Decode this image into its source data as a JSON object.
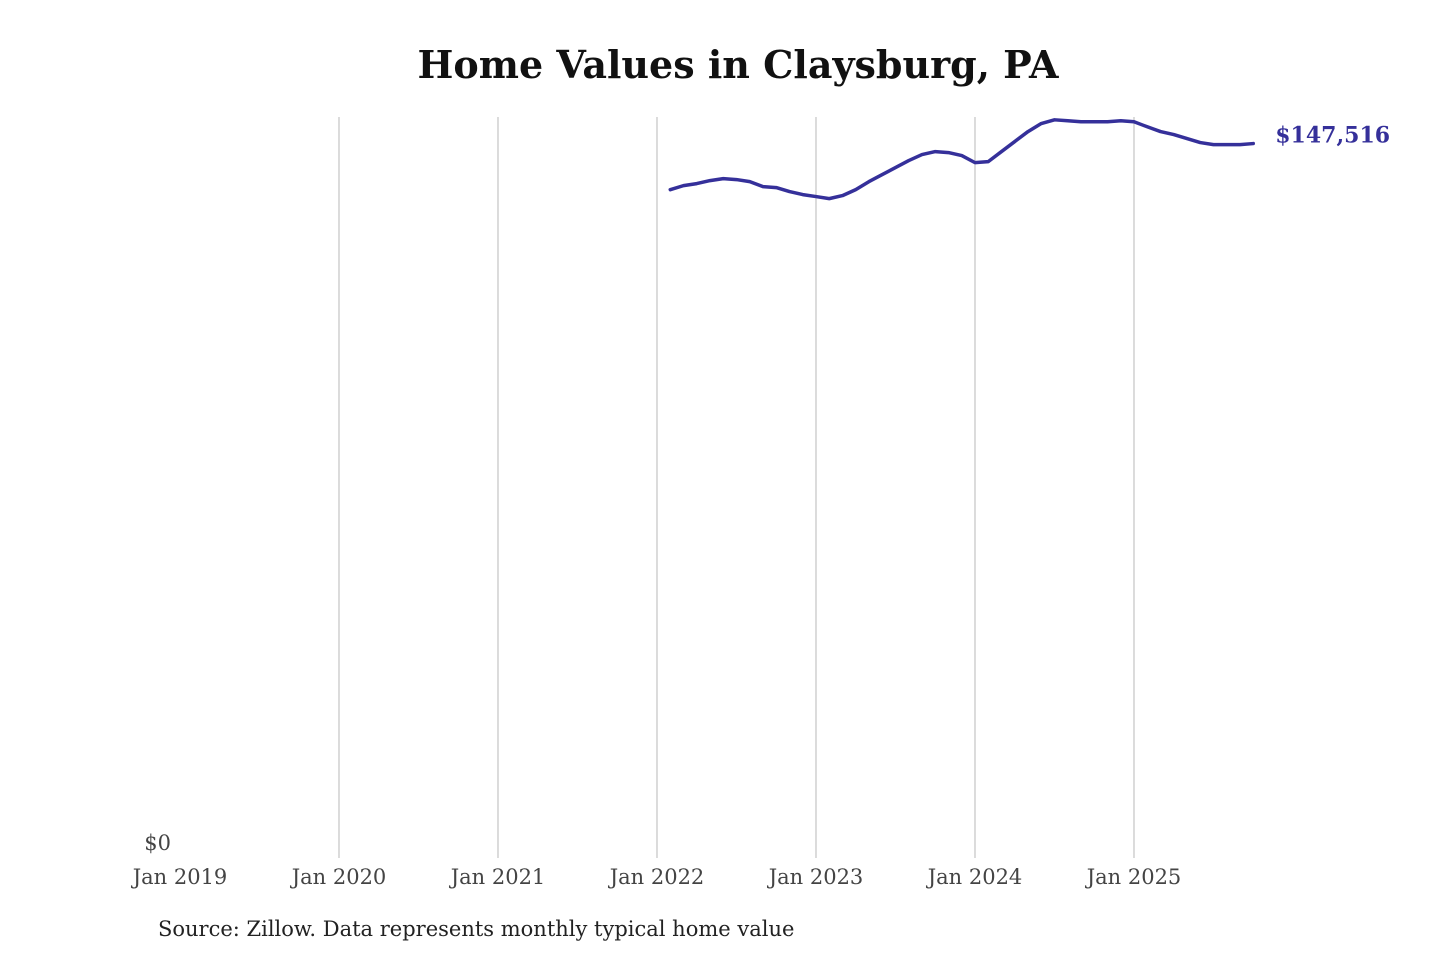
{
  "chart_data": {
    "type": "line",
    "title": "Home Values in Claysburg, PA",
    "source": "Source: Zillow. Data represents monthly typical home value",
    "xlabel": "",
    "ylabel": "",
    "x_ticks": [
      "Jan 2019",
      "Jan 2020",
      "Jan 2021",
      "Jan 2022",
      "Jan 2023",
      "Jan 2024",
      "Jan 2025"
    ],
    "y_ticks": [
      "$0"
    ],
    "xlim": [
      "2019-01",
      "2025-10"
    ],
    "ylim": [
      0,
      153000
    ],
    "grid": "vertical",
    "line_color": "#35309a",
    "end_label": "$147,516",
    "series": [
      {
        "name": "Typical home value",
        "start": "2022-02",
        "values": [
          138000,
          138830,
          139250,
          139870,
          140280,
          140080,
          139660,
          138630,
          138420,
          137600,
          136980,
          136570,
          136150,
          136770,
          138010,
          139660,
          141110,
          142550,
          144000,
          145240,
          145860,
          145650,
          145030,
          143580,
          143790,
          145860,
          147930,
          149990,
          151650,
          152420,
          152220,
          152010,
          152010,
          152010,
          152220,
          152010,
          150980,
          149990,
          149370,
          148540,
          147720,
          147300,
          147300,
          147300,
          147516
        ]
      }
    ]
  }
}
